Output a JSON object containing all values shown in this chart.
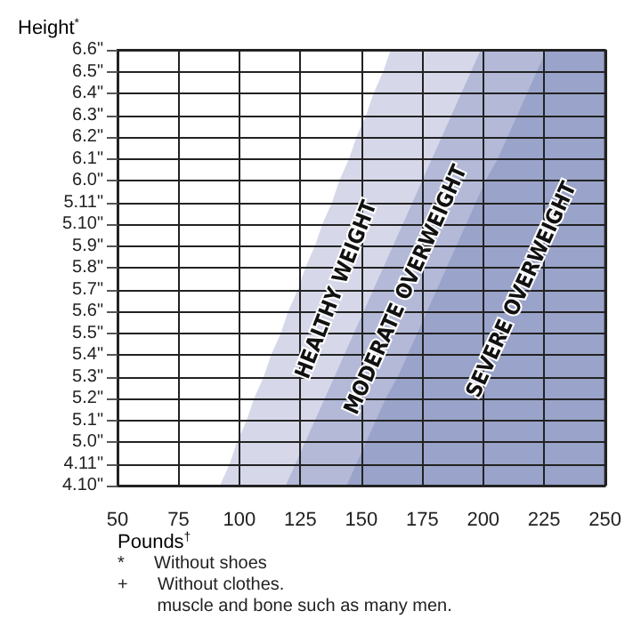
{
  "chart_data": {
    "type": "area",
    "orientation": "horizontal",
    "grid": true,
    "legend": false,
    "ylabel": "Height$^{*}$",
    "xlabel": "Pounds$^{†}$",
    "categories": [
      "6.6\"",
      "6.5\"",
      "6.4\"",
      "6.3\"",
      "6.2\"",
      "6.1\"",
      "6.0\"",
      "5.11\"",
      "5.10\"",
      "5.9\"",
      "5.8\"",
      "5.7\"",
      "5.6\"",
      "5.5\"",
      "5.4\"",
      "5.3\"",
      "5.2\"",
      "5.1\"",
      "5.0\"",
      "4.11\"",
      "4.10\""
    ],
    "xlim": [
      50,
      250
    ],
    "xticks": [
      50,
      75,
      100,
      125,
      150,
      175,
      200,
      225,
      250
    ],
    "series": [
      {
        "color": "#ffffff",
        "values": [
          162,
          159,
          155,
          152,
          148,
          145,
          141,
          138,
          134,
          131,
          127,
          124,
          120,
          117,
          113,
          110,
          106,
          103,
          99,
          96,
          92
        ]
      },
      {
        "name": "HEALTHY WEIGHT",
        "color": "#d6d8e9",
        "values": [
          199,
          195,
          191,
          187,
          183,
          179,
          175,
          171,
          167,
          163,
          159,
          155,
          151,
          147,
          143,
          139,
          135,
          131,
          127,
          123,
          119
        ]
      },
      {
        "name": "MODERATE OVERWEIGHT",
        "color": "#b3b9d7",
        "values": [
          226,
          222,
          218,
          214,
          210,
          206,
          201,
          197,
          193,
          189,
          185,
          181,
          177,
          173,
          169,
          165,
          160,
          156,
          152,
          148,
          144
        ]
      },
      {
        "name": "SEVERE OVERWEIGHT",
        "color": "#9aa3c9",
        "values": [
          250,
          250,
          250,
          250,
          250,
          250,
          250,
          250,
          250,
          250,
          250,
          250,
          250,
          250,
          250,
          250,
          250,
          250,
          250,
          250,
          250
        ]
      }
    ],
    "annotations": [
      "*      Without shoes",
      "+      Without clothes.",
      "        muscle and bone such as many men."
    ]
  }
}
